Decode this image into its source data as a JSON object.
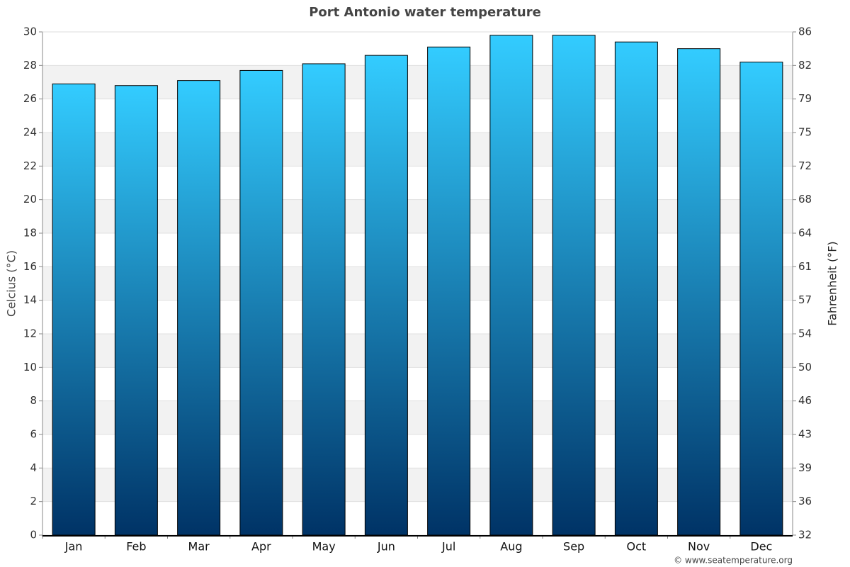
{
  "chart_data": {
    "type": "bar",
    "title": "Port Antonio water temperature",
    "y_label": "Celcius (°C)",
    "y2_label": "Fahrenheit (°F)",
    "credit": "© www.seatemperature.org",
    "categories": [
      "Jan",
      "Feb",
      "Mar",
      "Apr",
      "May",
      "Jun",
      "Jul",
      "Aug",
      "Sep",
      "Oct",
      "Nov",
      "Dec"
    ],
    "values": [
      26.9,
      26.8,
      27.1,
      27.7,
      28.1,
      28.6,
      29.1,
      29.8,
      29.8,
      29.4,
      29.0,
      28.2
    ],
    "gradient": {
      "top": "#33ccff",
      "bottom": "#003366"
    },
    "ylim": [
      0,
      30
    ],
    "yticks": [
      0,
      2,
      4,
      6,
      8,
      10,
      12,
      14,
      16,
      18,
      20,
      22,
      24,
      26,
      28,
      30
    ],
    "y2lim": [
      32,
      86
    ],
    "y2ticks": [
      32,
      {
        "value": 35.6,
        "label": "36"
      },
      {
        "value": 39.2,
        "label": "39"
      },
      {
        "value": 42.8,
        "label": "43"
      },
      {
        "value": 46.4,
        "label": "46"
      },
      50,
      {
        "value": 53.6,
        "label": "54"
      },
      {
        "value": 57.2,
        "label": "57"
      },
      {
        "value": 60.8,
        "label": "61"
      },
      {
        "value": 64.4,
        "label": "64"
      },
      68,
      {
        "value": 71.6,
        "label": "72"
      },
      {
        "value": 75.2,
        "label": "75"
      },
      {
        "value": 78.8,
        "label": "79"
      },
      {
        "value": 82.4,
        "label": "82"
      },
      86
    ],
    "grid": true
  }
}
